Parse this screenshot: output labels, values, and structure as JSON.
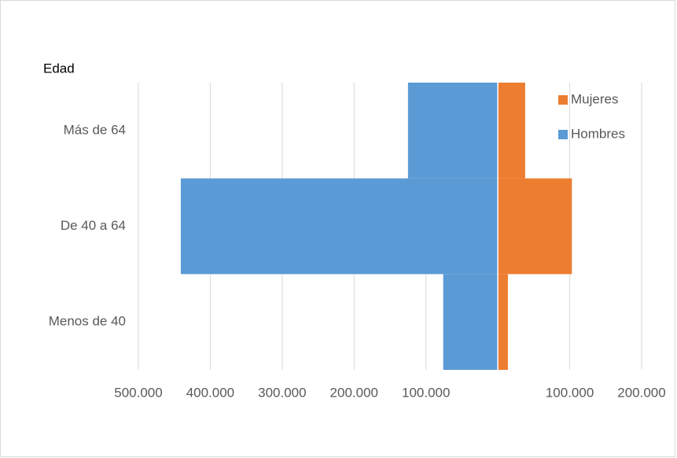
{
  "chart_data": {
    "type": "pyramid",
    "y_axis_title": "Edad",
    "categories": [
      "Más de 64",
      "De 40 a 64",
      "Menos de 40"
    ],
    "series": [
      {
        "name": "Mujeres",
        "color": "#ed7d31",
        "values": [
          38000,
          103000,
          14000
        ]
      },
      {
        "name": "Hombres",
        "color": "#5b9bd5",
        "values": [
          -125000,
          -441000,
          -76000
        ]
      }
    ],
    "xlim": [
      -500000,
      200000
    ],
    "xticks": [
      {
        "value": -500000,
        "label": "500.000"
      },
      {
        "value": -400000,
        "label": "400.000"
      },
      {
        "value": -300000,
        "label": "300.000"
      },
      {
        "value": -200000,
        "label": "200.000"
      },
      {
        "value": -100000,
        "label": "100.000"
      },
      {
        "value": 100000,
        "label": "100.000"
      },
      {
        "value": 200000,
        "label": "200.000"
      }
    ],
    "grid": true,
    "legend": "top-right"
  }
}
